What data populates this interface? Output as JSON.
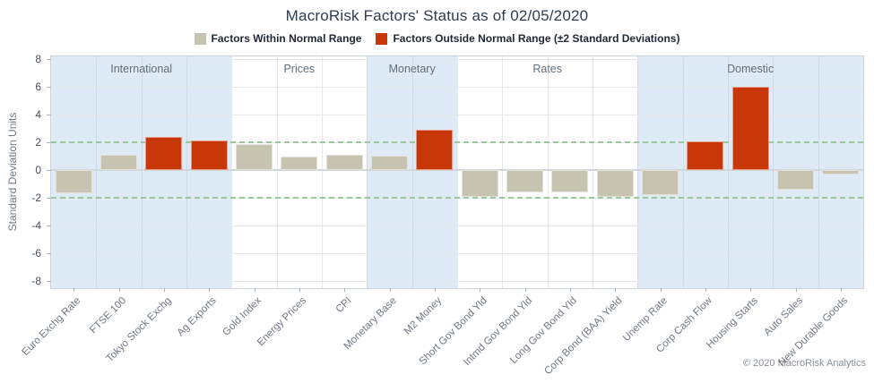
{
  "title": "MacroRisk Factors' Status as of 02/05/2020",
  "footer": "© 2020 MacroRisk Analytics",
  "legend": {
    "items": [
      {
        "id": "within",
        "label": "Factors Within Normal Range",
        "color": "#c6c3b1"
      },
      {
        "id": "outside",
        "label": "Factors Outside Normal Range (±2 Standard Deviations)",
        "color": "#c83708"
      }
    ]
  },
  "colors": {
    "within": "#c6c3b1",
    "outside": "#c83708",
    "band": "#deeaf6",
    "threshold": "#9cc69c",
    "zero_line": "#cfd6dc"
  },
  "chart_data": {
    "type": "bar",
    "title": "MacroRisk Factors' Status as of 02/05/2020",
    "ylabel": "Standard Deviation Units",
    "xlabel": "",
    "ylim": [
      -8,
      8
    ],
    "yticks": [
      8,
      6,
      4,
      2,
      0,
      -2,
      -4,
      -6,
      -8
    ],
    "threshold_lines": [
      2,
      -2
    ],
    "grid": true,
    "legend_position": "top",
    "groups": [
      {
        "label": "International",
        "count": 4,
        "shaded": true
      },
      {
        "label": "Prices",
        "count": 3,
        "shaded": false
      },
      {
        "label": "Monetary",
        "count": 2,
        "shaded": true
      },
      {
        "label": "Rates",
        "count": 4,
        "shaded": false
      },
      {
        "label": "Domestic",
        "count": 5,
        "shaded": true
      }
    ],
    "categories": [
      "Euro Exchg Rate",
      "FTSE 100",
      "Tokyo Stock Exchg",
      "Ag Exports",
      "Gold Index",
      "Energy Prices",
      "CPI",
      "Monetary Base",
      "M2 Money",
      "Short Gov Bond Yld",
      "Intmd Gov Bond Yld",
      "Long Gov Bond Yld",
      "Corp Bond (BAA) Yield",
      "Unemp Rate",
      "Corp Cash Flow",
      "Housing Starts",
      "Auto Sales",
      "New Durable Goods"
    ],
    "values": [
      -1.7,
      1.1,
      2.4,
      2.1,
      1.9,
      0.95,
      1.1,
      1.05,
      2.9,
      -1.95,
      -1.6,
      -1.6,
      -1.95,
      -1.8,
      2.05,
      6.0,
      -1.45,
      -0.35
    ],
    "status": [
      "within",
      "within",
      "outside",
      "outside",
      "within",
      "within",
      "within",
      "within",
      "outside",
      "within",
      "within",
      "within",
      "within",
      "within",
      "outside",
      "outside",
      "within",
      "within"
    ]
  }
}
